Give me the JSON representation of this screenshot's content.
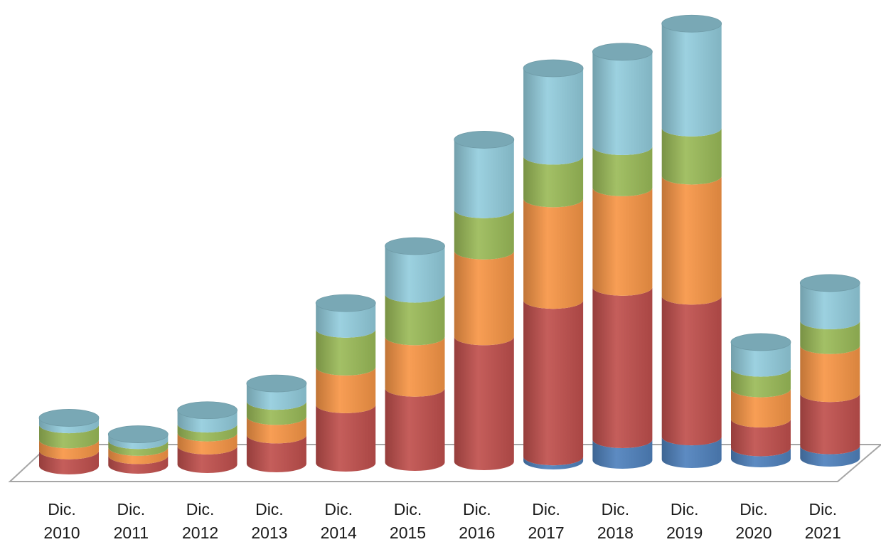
{
  "chart_data": {
    "type": "bar",
    "stacked": true,
    "three_d": true,
    "bar_shape": "cylinder",
    "title": "",
    "xlabel": "",
    "ylabel": "",
    "legend": "none",
    "grid": false,
    "categories": [
      [
        "Dic.",
        "2010"
      ],
      [
        "Dic.",
        "2011"
      ],
      [
        "Dic.",
        "2012"
      ],
      [
        "Dic.",
        "2013"
      ],
      [
        "Dic.",
        "2014"
      ],
      [
        "Dic.",
        "2015"
      ],
      [
        "Dic.",
        "2016"
      ],
      [
        "Dic.",
        "2017"
      ],
      [
        "Dic.",
        "2018"
      ],
      [
        "Dic.",
        "2019"
      ],
      [
        "Dic.",
        "2020"
      ],
      [
        "Dic.",
        "2021"
      ]
    ],
    "ylim": [
      0,
      650
    ],
    "series": [
      {
        "color": "#4f81bd",
        "values": [
          0,
          0,
          0,
          0,
          0,
          0,
          0,
          6,
          30,
          33,
          16,
          18
        ]
      },
      {
        "color": "#c0504d",
        "values": [
          22,
          14,
          27,
          42,
          85,
          108,
          182,
          228,
          222,
          205,
          42,
          76
        ]
      },
      {
        "color": "#f79646",
        "values": [
          16,
          12,
          19,
          27,
          55,
          75,
          125,
          148,
          145,
          175,
          44,
          70
        ]
      },
      {
        "color": "#9bbb59",
        "values": [
          22,
          10,
          13,
          22,
          55,
          62,
          60,
          62,
          60,
          70,
          30,
          36
        ]
      },
      {
        "color": "#93cddd",
        "values": [
          10,
          9,
          20,
          26,
          38,
          70,
          102,
          128,
          138,
          152,
          38,
          55
        ]
      }
    ]
  }
}
